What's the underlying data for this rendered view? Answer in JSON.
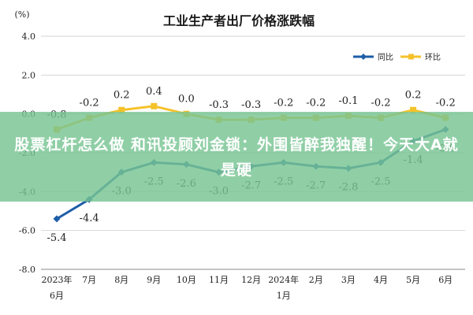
{
  "overlay": {
    "headline": "股票杠杆怎么做 和讯投顾刘金锁：外围皆醉我独醒！今天大A就是硬"
  },
  "chart_data": {
    "type": "line",
    "title": "工业生产者出厂价格涨跌幅",
    "ylabel": "(%)",
    "categories": [
      [
        "2023年",
        "6月"
      ],
      [
        "7月"
      ],
      [
        "8月"
      ],
      [
        "9月"
      ],
      [
        "10月"
      ],
      [
        "11月"
      ],
      [
        "12月"
      ],
      [
        "2024年",
        "1月"
      ],
      [
        "2月"
      ],
      [
        "3月"
      ],
      [
        "4月"
      ],
      [
        "5月"
      ],
      [
        "6月"
      ]
    ],
    "yticks": [
      "4.0",
      "2.0",
      "0.0",
      "-2.0",
      "-4.0",
      "-6.0",
      "-8.0"
    ],
    "ylim": [
      -8,
      4
    ],
    "grid": true,
    "legend_position": "top-right",
    "series": [
      {
        "name": "同比",
        "color": "#1f5ea8",
        "values": [
          -5.4,
          -4.4,
          -3.0,
          -2.5,
          -2.6,
          -3.0,
          -2.7,
          -2.5,
          -2.7,
          -2.8,
          -2.5,
          -1.4,
          -0.8
        ],
        "labels": [
          "-5.4",
          "-4.4",
          "-3.0",
          "-2.5",
          "-2.6",
          "-3.0",
          "-2.7",
          "-2.5",
          "-2.7",
          "-2.8",
          "-2.5",
          "-1.4",
          "-0.8"
        ]
      },
      {
        "name": "环比",
        "color": "#f5c22b",
        "values": [
          -0.8,
          -0.2,
          0.2,
          0.4,
          0.0,
          -0.3,
          -0.3,
          -0.2,
          -0.2,
          -0.1,
          -0.2,
          0.2,
          -0.2
        ],
        "labels": [
          "-0.8",
          "-0.2",
          "0.2",
          "0.4",
          "0.0",
          "-0.3",
          "-0.3",
          "-0.2",
          "-0.2",
          "-0.1",
          "-0.2",
          "0.2",
          "-0.2"
        ]
      }
    ]
  }
}
